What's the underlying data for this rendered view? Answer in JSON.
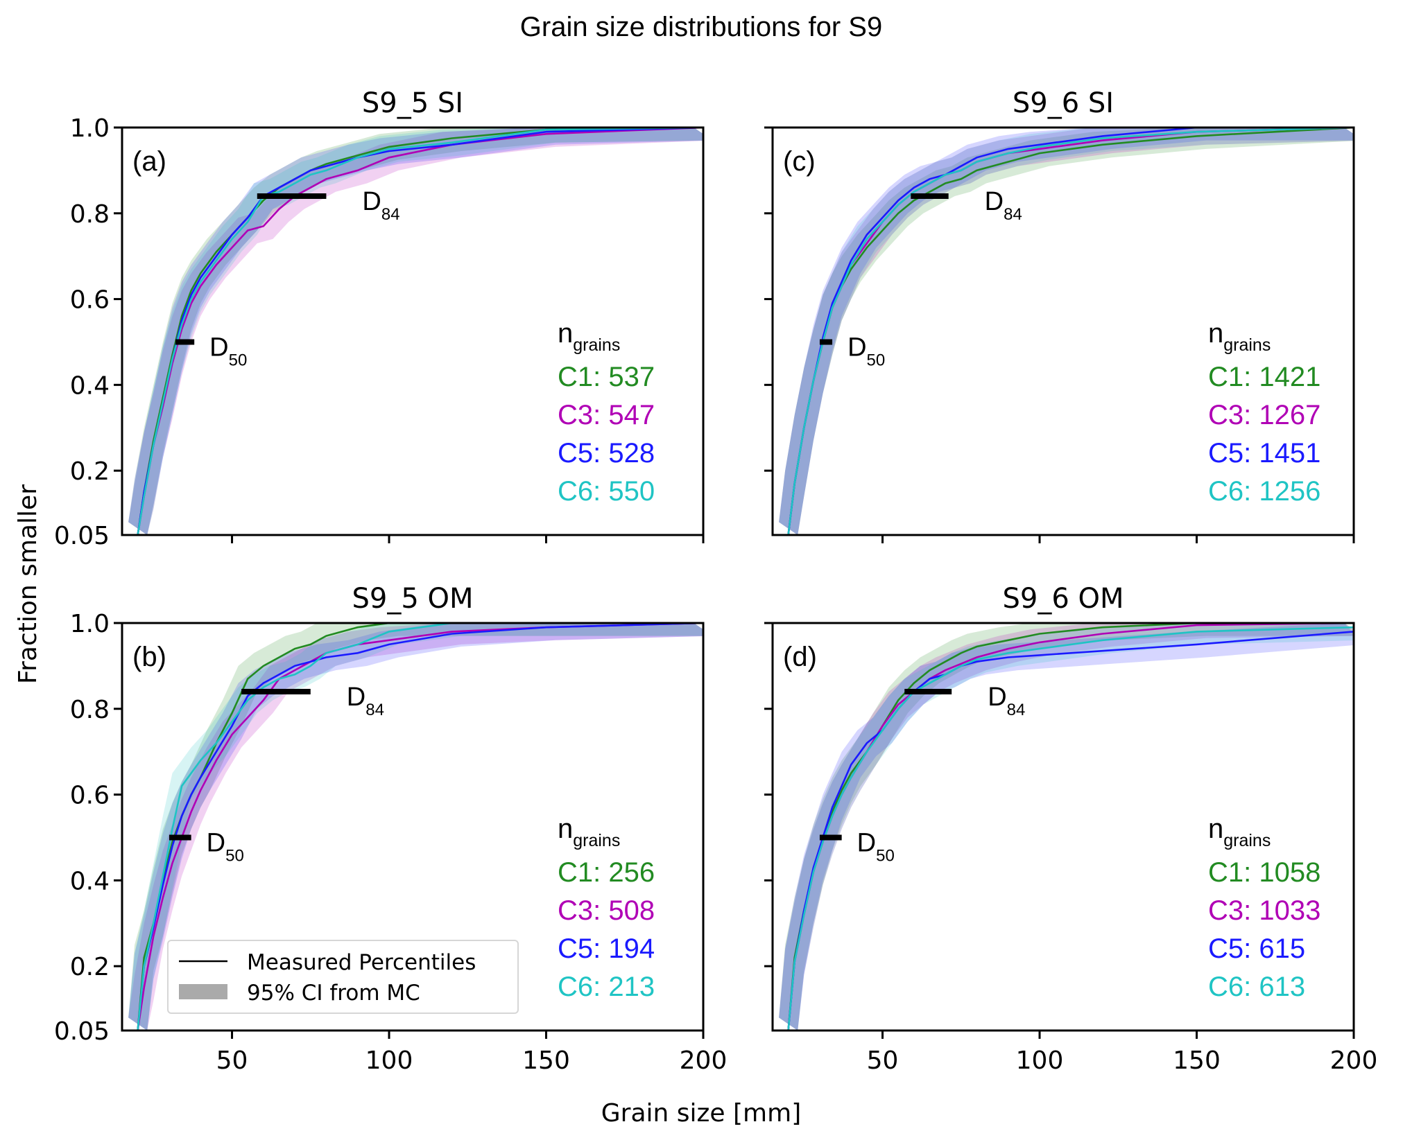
{
  "figure": {
    "suptitle": "Grain size distributions for S9",
    "xlabel": "Grain size [mm]",
    "ylabel": "Fraction smaller",
    "legend": {
      "line_label": "Measured Percentiles",
      "patch_label": "95% CI from MC",
      "placement": "lower-left of panel (b)"
    },
    "ngrains_label": "n",
    "ngrains_sub": "grains",
    "d50_label": "D",
    "d50_sub": "50",
    "d84_label": "D",
    "d84_sub": "84",
    "colors": {
      "C1": "#228b22",
      "C3": "#b000b5",
      "C5": "#1a1aff",
      "C6": "#1fc4c4"
    }
  },
  "chart_data": [
    {
      "type": "line",
      "panel_letter": "(a)",
      "title": "S9_5 SI",
      "xlim": [
        15,
        200
      ],
      "ylim": [
        0.05,
        1.0
      ],
      "xticks": [
        "50",
        "100",
        "150",
        "200"
      ],
      "yticks": [
        "0.05",
        "0.2",
        "0.4",
        "0.6",
        "0.8",
        "1.0"
      ],
      "d50": {
        "x": [
          32,
          38
        ],
        "y": 0.5
      },
      "d84": {
        "x": [
          58,
          80
        ],
        "y": 0.84
      },
      "counts": [
        {
          "label": "C1: 537",
          "series": "C1"
        },
        {
          "label": "C3: 547",
          "series": "C3"
        },
        {
          "label": "C5: 528",
          "series": "C5"
        },
        {
          "label": "C6: 550",
          "series": "C6"
        }
      ],
      "series": [
        {
          "name": "C1",
          "x": [
            20,
            22,
            25,
            28,
            31,
            34,
            37,
            40,
            45,
            50,
            55,
            60,
            65,
            70,
            75,
            80,
            90,
            100,
            120,
            150,
            200
          ],
          "y": [
            0.05,
            0.15,
            0.27,
            0.37,
            0.47,
            0.56,
            0.62,
            0.66,
            0.71,
            0.75,
            0.79,
            0.83,
            0.86,
            0.88,
            0.9,
            0.915,
            0.935,
            0.955,
            0.975,
            0.995,
            1.0
          ]
        },
        {
          "name": "C3",
          "x": [
            20,
            22,
            25,
            28,
            31,
            34,
            37,
            40,
            45,
            50,
            55,
            60,
            65,
            70,
            75,
            80,
            90,
            100,
            120,
            150,
            200
          ],
          "y": [
            0.05,
            0.14,
            0.26,
            0.35,
            0.45,
            0.53,
            0.59,
            0.63,
            0.68,
            0.72,
            0.76,
            0.77,
            0.81,
            0.84,
            0.86,
            0.88,
            0.9,
            0.93,
            0.96,
            0.985,
            1.0
          ]
        },
        {
          "name": "C5",
          "x": [
            20,
            22,
            25,
            28,
            31,
            34,
            37,
            40,
            45,
            50,
            55,
            60,
            65,
            70,
            75,
            80,
            90,
            100,
            120,
            150,
            200
          ],
          "y": [
            0.05,
            0.15,
            0.26,
            0.36,
            0.46,
            0.55,
            0.61,
            0.65,
            0.7,
            0.75,
            0.79,
            0.84,
            0.86,
            0.88,
            0.9,
            0.91,
            0.93,
            0.945,
            0.96,
            0.99,
            1.0
          ]
        },
        {
          "name": "C6",
          "x": [
            20,
            22,
            25,
            28,
            31,
            34,
            37,
            40,
            45,
            50,
            55,
            60,
            65,
            70,
            75,
            80,
            90,
            100,
            120,
            150,
            200
          ],
          "y": [
            0.05,
            0.14,
            0.26,
            0.36,
            0.46,
            0.54,
            0.6,
            0.64,
            0.69,
            0.74,
            0.78,
            0.84,
            0.85,
            0.87,
            0.89,
            0.9,
            0.93,
            0.95,
            0.965,
            0.995,
            1.0
          ]
        }
      ]
    },
    {
      "type": "line",
      "panel_letter": "(b)",
      "title": "S9_5 OM",
      "xlim": [
        15,
        200
      ],
      "ylim": [
        0.05,
        1.0
      ],
      "xticks": [
        "50",
        "100",
        "150",
        "200"
      ],
      "yticks": [
        "0.05",
        "0.2",
        "0.4",
        "0.6",
        "0.8",
        "1.0"
      ],
      "d50": {
        "x": [
          30,
          37
        ],
        "y": 0.5
      },
      "d84": {
        "x": [
          53,
          75
        ],
        "y": 0.84
      },
      "counts": [
        {
          "label": "C1: 256",
          "series": "C1"
        },
        {
          "label": "C3: 508",
          "series": "C3"
        },
        {
          "label": "C5: 194",
          "series": "C5"
        },
        {
          "label": "C6: 213",
          "series": "C6"
        }
      ],
      "series": [
        {
          "name": "C1",
          "x": [
            20,
            22,
            25,
            28,
            31,
            34,
            37,
            40,
            45,
            50,
            55,
            60,
            65,
            70,
            75,
            80,
            90,
            100,
            120,
            150,
            200
          ],
          "y": [
            0.05,
            0.22,
            0.3,
            0.4,
            0.49,
            0.55,
            0.6,
            0.64,
            0.72,
            0.79,
            0.87,
            0.9,
            0.92,
            0.94,
            0.95,
            0.97,
            0.99,
            1.0,
            1.0,
            1.0,
            1.0
          ]
        },
        {
          "name": "C3",
          "x": [
            20,
            22,
            25,
            28,
            31,
            34,
            37,
            40,
            45,
            50,
            55,
            60,
            65,
            70,
            75,
            80,
            90,
            100,
            120,
            150,
            200
          ],
          "y": [
            0.05,
            0.15,
            0.27,
            0.36,
            0.44,
            0.5,
            0.56,
            0.61,
            0.68,
            0.74,
            0.78,
            0.82,
            0.87,
            0.89,
            0.91,
            0.93,
            0.95,
            0.96,
            0.98,
            0.99,
            1.0
          ]
        },
        {
          "name": "C5",
          "x": [
            20,
            22,
            25,
            28,
            31,
            34,
            37,
            40,
            45,
            50,
            55,
            60,
            65,
            70,
            75,
            80,
            90,
            100,
            120,
            150,
            200
          ],
          "y": [
            0.05,
            0.2,
            0.29,
            0.39,
            0.48,
            0.55,
            0.6,
            0.64,
            0.7,
            0.76,
            0.83,
            0.86,
            0.88,
            0.9,
            0.91,
            0.92,
            0.93,
            0.95,
            0.975,
            0.99,
            1.0
          ]
        },
        {
          "name": "C6",
          "x": [
            20,
            22,
            25,
            28,
            31,
            34,
            37,
            40,
            45,
            50,
            55,
            60,
            65,
            70,
            75,
            80,
            90,
            100,
            120,
            150,
            200
          ],
          "y": [
            0.05,
            0.2,
            0.3,
            0.41,
            0.52,
            0.62,
            0.65,
            0.68,
            0.72,
            0.77,
            0.82,
            0.85,
            0.87,
            0.88,
            0.9,
            0.93,
            0.95,
            0.98,
            1.0,
            1.0,
            1.0
          ]
        }
      ]
    },
    {
      "type": "line",
      "panel_letter": "(c)",
      "title": "S9_6 SI",
      "xlim": [
        15,
        200
      ],
      "ylim": [
        0.05,
        1.0
      ],
      "xticks": [
        "50",
        "100",
        "150",
        "200"
      ],
      "yticks": [
        "0.05",
        "0.2",
        "0.4",
        "0.6",
        "0.8",
        "1.0"
      ],
      "d50": {
        "x": [
          30,
          34
        ],
        "y": 0.5
      },
      "d84": {
        "x": [
          59,
          71
        ],
        "y": 0.84
      },
      "counts": [
        {
          "label": "C1: 1421",
          "series": "C1"
        },
        {
          "label": "C3: 1267",
          "series": "C3"
        },
        {
          "label": "C5: 1451",
          "series": "C5"
        },
        {
          "label": "C6: 1256",
          "series": "C6"
        }
      ],
      "series": [
        {
          "name": "C1",
          "x": [
            20,
            22,
            25,
            28,
            31,
            34,
            37,
            40,
            45,
            50,
            55,
            60,
            65,
            70,
            75,
            80,
            90,
            100,
            120,
            150,
            200
          ],
          "y": [
            0.05,
            0.17,
            0.3,
            0.41,
            0.5,
            0.58,
            0.63,
            0.67,
            0.72,
            0.76,
            0.8,
            0.83,
            0.85,
            0.87,
            0.88,
            0.9,
            0.92,
            0.94,
            0.96,
            0.98,
            1.0
          ]
        },
        {
          "name": "C3",
          "x": [
            20,
            22,
            25,
            28,
            31,
            34,
            37,
            40,
            45,
            50,
            55,
            60,
            65,
            70,
            75,
            80,
            90,
            100,
            120,
            150,
            200
          ],
          "y": [
            0.05,
            0.17,
            0.3,
            0.41,
            0.5,
            0.58,
            0.63,
            0.68,
            0.73,
            0.78,
            0.82,
            0.85,
            0.87,
            0.89,
            0.9,
            0.92,
            0.94,
            0.95,
            0.97,
            0.99,
            1.0
          ]
        },
        {
          "name": "C5",
          "x": [
            20,
            22,
            25,
            28,
            31,
            34,
            37,
            40,
            45,
            50,
            55,
            60,
            65,
            70,
            75,
            80,
            90,
            100,
            120,
            150,
            200
          ],
          "y": [
            0.05,
            0.17,
            0.3,
            0.41,
            0.51,
            0.59,
            0.64,
            0.69,
            0.75,
            0.79,
            0.83,
            0.86,
            0.88,
            0.89,
            0.91,
            0.93,
            0.95,
            0.96,
            0.98,
            1.0,
            1.0
          ]
        },
        {
          "name": "C6",
          "x": [
            20,
            22,
            25,
            28,
            31,
            34,
            37,
            40,
            45,
            50,
            55,
            60,
            65,
            70,
            75,
            80,
            90,
            100,
            120,
            150,
            200
          ],
          "y": [
            0.05,
            0.17,
            0.3,
            0.41,
            0.5,
            0.58,
            0.63,
            0.68,
            0.74,
            0.78,
            0.82,
            0.85,
            0.87,
            0.89,
            0.9,
            0.92,
            0.94,
            0.955,
            0.975,
            0.99,
            1.0
          ]
        }
      ]
    },
    {
      "type": "line",
      "panel_letter": "(d)",
      "title": "S9_6 OM",
      "xlim": [
        15,
        200
      ],
      "ylim": [
        0.05,
        1.0
      ],
      "xticks": [
        "50",
        "100",
        "150",
        "200"
      ],
      "yticks": [
        "0.05",
        "0.2",
        "0.4",
        "0.6",
        "0.8",
        "1.0"
      ],
      "d50": {
        "x": [
          30,
          37
        ],
        "y": 0.5
      },
      "d84": {
        "x": [
          57,
          72
        ],
        "y": 0.84
      },
      "counts": [
        {
          "label": "C1: 1058",
          "series": "C1"
        },
        {
          "label": "C3: 1033",
          "series": "C3"
        },
        {
          "label": "C5: 615",
          "series": "C5"
        },
        {
          "label": "C6: 613",
          "series": "C6"
        }
      ],
      "series": [
        {
          "name": "C1",
          "x": [
            20,
            22,
            25,
            28,
            31,
            34,
            37,
            40,
            45,
            50,
            55,
            60,
            65,
            70,
            75,
            80,
            90,
            100,
            120,
            150,
            200
          ],
          "y": [
            0.05,
            0.22,
            0.33,
            0.42,
            0.5,
            0.56,
            0.61,
            0.65,
            0.7,
            0.76,
            0.82,
            0.86,
            0.89,
            0.91,
            0.93,
            0.945,
            0.96,
            0.975,
            0.99,
            1.0,
            1.0
          ]
        },
        {
          "name": "C3",
          "x": [
            20,
            22,
            25,
            28,
            31,
            34,
            37,
            40,
            45,
            50,
            55,
            60,
            65,
            70,
            75,
            80,
            90,
            100,
            120,
            150,
            200
          ],
          "y": [
            0.05,
            0.21,
            0.32,
            0.42,
            0.49,
            0.55,
            0.6,
            0.64,
            0.7,
            0.76,
            0.81,
            0.84,
            0.87,
            0.89,
            0.905,
            0.92,
            0.94,
            0.955,
            0.975,
            0.995,
            1.0
          ]
        },
        {
          "name": "C5",
          "x": [
            20,
            22,
            25,
            28,
            31,
            34,
            37,
            40,
            45,
            50,
            55,
            60,
            65,
            70,
            75,
            80,
            90,
            100,
            120,
            150,
            200
          ],
          "y": [
            0.05,
            0.21,
            0.33,
            0.43,
            0.5,
            0.57,
            0.62,
            0.67,
            0.72,
            0.75,
            0.8,
            0.84,
            0.87,
            0.88,
            0.9,
            0.91,
            0.92,
            0.925,
            0.935,
            0.95,
            0.98
          ]
        },
        {
          "name": "C6",
          "x": [
            20,
            22,
            25,
            28,
            31,
            34,
            37,
            40,
            45,
            50,
            55,
            60,
            65,
            70,
            75,
            80,
            90,
            100,
            120,
            150,
            200
          ],
          "y": [
            0.05,
            0.21,
            0.32,
            0.42,
            0.49,
            0.55,
            0.6,
            0.64,
            0.7,
            0.75,
            0.8,
            0.84,
            0.86,
            0.88,
            0.9,
            0.915,
            0.93,
            0.94,
            0.96,
            0.98,
            0.99
          ]
        }
      ]
    }
  ]
}
